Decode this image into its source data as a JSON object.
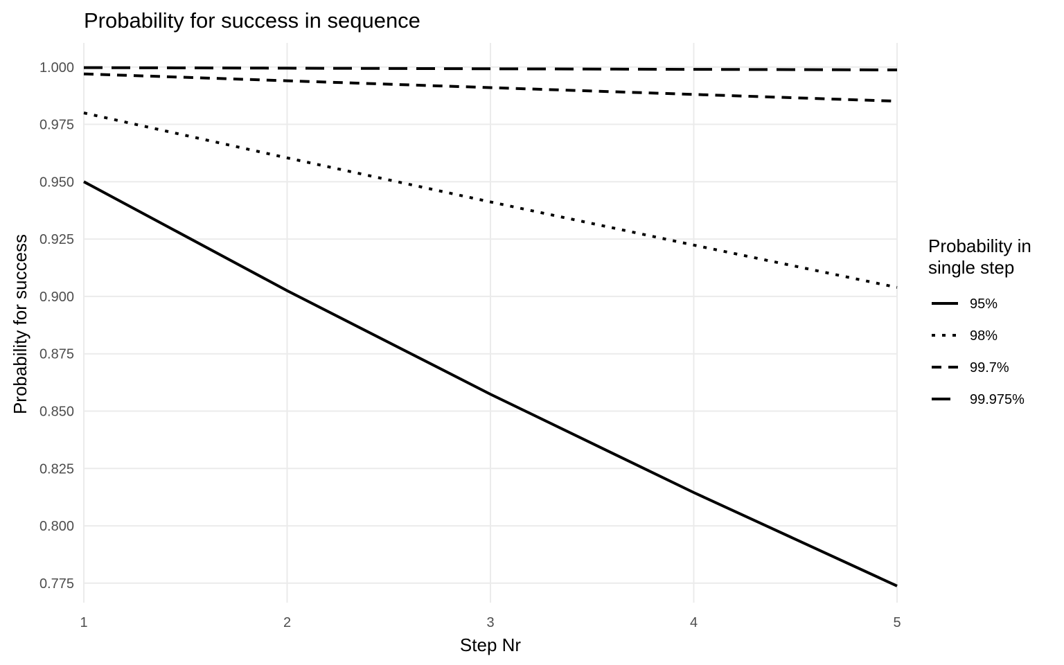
{
  "chart_data": {
    "type": "line",
    "title": "Probability for success in sequence",
    "xlabel": "Step Nr",
    "ylabel": "Probability for success",
    "xlim": [
      1,
      5
    ],
    "ylim": [
      0.7665,
      1.0105
    ],
    "x_ticks": [
      "1",
      "2",
      "3",
      "4",
      "5"
    ],
    "y_ticks": [
      "0.775",
      "0.800",
      "0.825",
      "0.850",
      "0.875",
      "0.900",
      "0.925",
      "0.950",
      "0.975",
      "1.000"
    ],
    "grid": true,
    "legend": {
      "title_lines": [
        "Probability in",
        "single step"
      ],
      "placement": "right"
    },
    "series": [
      {
        "name": "95%",
        "line_style": "solid",
        "x": [
          1,
          2,
          3,
          4,
          5
        ],
        "values": [
          0.95,
          0.9025,
          0.857375,
          0.814506,
          0.773781
        ]
      },
      {
        "name": "98%",
        "line_style": "dotted",
        "x": [
          1,
          2,
          3,
          4,
          5
        ],
        "values": [
          0.98,
          0.9604,
          0.941192,
          0.922368,
          0.903921
        ]
      },
      {
        "name": "99.7%",
        "line_style": "dashed",
        "x": [
          1,
          2,
          3,
          4,
          5
        ],
        "values": [
          0.997,
          0.994009,
          0.991027,
          0.988054,
          0.98509
        ]
      },
      {
        "name": "99.975%",
        "line_style": "longdash",
        "x": [
          1,
          2,
          3,
          4,
          5
        ],
        "values": [
          0.99975,
          0.9995,
          0.99925,
          0.999,
          0.99875
        ]
      }
    ]
  }
}
